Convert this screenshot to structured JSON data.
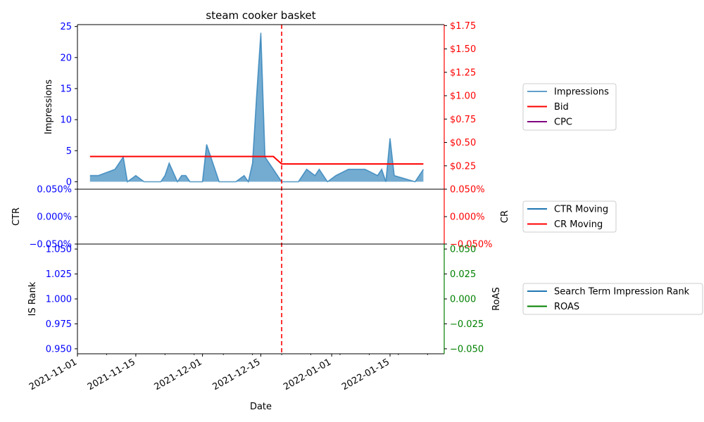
{
  "chart_data": {
    "type": "area",
    "title": "steam cooker basket",
    "xlabel": "Date",
    "x_ticks": [
      "2021-11-01",
      "2021-11-15",
      "2021-12-01",
      "2021-12-15",
      "2022-01-01",
      "2022-01-15"
    ],
    "x_range": [
      "2021-11-01",
      "2022-01-28"
    ],
    "event_line_date": "2021-12-20",
    "panels": [
      {
        "ylabel_left": "Impressions",
        "ylabel_right": "",
        "ylim_left": [
          -1.2,
          25.3
        ],
        "ylim_right": [
          0.0,
          1.76
        ],
        "y_ticks_left": [
          "0",
          "5",
          "10",
          "15",
          "20",
          "25"
        ],
        "y_ticks_right": [
          "$0.25",
          "$0.50",
          "$0.75",
          "$1.00",
          "$1.25",
          "$1.50",
          "$1.75"
        ],
        "legend": [
          "Impressions",
          "Bid",
          "CPC"
        ],
        "series": [
          {
            "name": "Impressions",
            "color": "#1f77b4",
            "points": [
              [
                "2021-11-04",
                1
              ],
              [
                "2021-11-06",
                1
              ],
              [
                "2021-11-10",
                2
              ],
              [
                "2021-11-12",
                4
              ],
              [
                "2021-11-13",
                0
              ],
              [
                "2021-11-15",
                1
              ],
              [
                "2021-11-17",
                0
              ],
              [
                "2021-11-21",
                0
              ],
              [
                "2021-11-22",
                1
              ],
              [
                "2021-11-23",
                3
              ],
              [
                "2021-11-25",
                0
              ],
              [
                "2021-11-26",
                1
              ],
              [
                "2021-11-27",
                1
              ],
              [
                "2021-11-28",
                0
              ],
              [
                "2021-12-01",
                0
              ],
              [
                "2021-12-02",
                6
              ],
              [
                "2021-12-04",
                2
              ],
              [
                "2021-12-05",
                0
              ],
              [
                "2021-12-09",
                0
              ],
              [
                "2021-12-11",
                1
              ],
              [
                "2021-12-12",
                0
              ],
              [
                "2021-12-13",
                3
              ],
              [
                "2021-12-14",
                14
              ],
              [
                "2021-12-15",
                24
              ],
              [
                "2021-12-16",
                4
              ],
              [
                "2021-12-18",
                2
              ],
              [
                "2021-12-20",
                0
              ],
              [
                "2021-12-24",
                0
              ],
              [
                "2021-12-26",
                2
              ],
              [
                "2021-12-28",
                1
              ],
              [
                "2021-12-29",
                2
              ],
              [
                "2021-12-31",
                0
              ],
              [
                "2022-01-02",
                1
              ],
              [
                "2022-01-05",
                2
              ],
              [
                "2022-01-09",
                2
              ],
              [
                "2022-01-12",
                1
              ],
              [
                "2022-01-13",
                2
              ],
              [
                "2022-01-14",
                0
              ],
              [
                "2022-01-15",
                7
              ],
              [
                "2022-01-16",
                1
              ],
              [
                "2022-01-21",
                0
              ],
              [
                "2022-01-23",
                2
              ]
            ]
          },
          {
            "name": "Bid",
            "color": "#ff0000",
            "points": [
              [
                "2021-11-04",
                0.35
              ],
              [
                "2021-12-18",
                0.35
              ],
              [
                "2021-12-20",
                0.27
              ],
              [
                "2022-01-23",
                0.27
              ]
            ]
          },
          {
            "name": "CPC",
            "color": "#800080",
            "points": []
          }
        ]
      },
      {
        "ylabel_left": "CTR",
        "ylabel_right": "CR",
        "ylim_left": [
          -0.05,
          0.05
        ],
        "y_ticks_left": [
          "−0.050%",
          "0.000%",
          "0.050%"
        ],
        "y_ticks_right": [
          "−0.050%",
          "0.000%",
          "0.050%"
        ],
        "legend": [
          "CTR Moving",
          "CR Moving"
        ],
        "series": [
          {
            "name": "CTR Moving",
            "color": "#1f77b4",
            "points": []
          },
          {
            "name": "CR Moving",
            "color": "#ff0000",
            "points": []
          }
        ]
      },
      {
        "ylabel_left": "IS Rank",
        "ylabel_right": "RoAS",
        "ylim_left": [
          0.945,
          1.055
        ],
        "ylim_right": [
          -0.055,
          0.055
        ],
        "y_ticks_left": [
          "0.950",
          "0.975",
          "1.000",
          "1.025",
          "1.050"
        ],
        "y_ticks_right": [
          "−0.050",
          "−0.025",
          "0.000",
          "0.025",
          "0.050"
        ],
        "legend": [
          "Search Term Impression Rank",
          "ROAS"
        ],
        "series": [
          {
            "name": "Search Term Impression Rank",
            "color": "#1f77b4",
            "points": []
          },
          {
            "name": "ROAS",
            "color": "#008000",
            "points": []
          }
        ]
      }
    ],
    "colors": {
      "left_axis": "#0000ff",
      "right_axis_top": "#ff0000",
      "right_axis_mid": "#ff0000",
      "right_axis_bottom": "#008000",
      "event_line": "#ff0000"
    }
  }
}
